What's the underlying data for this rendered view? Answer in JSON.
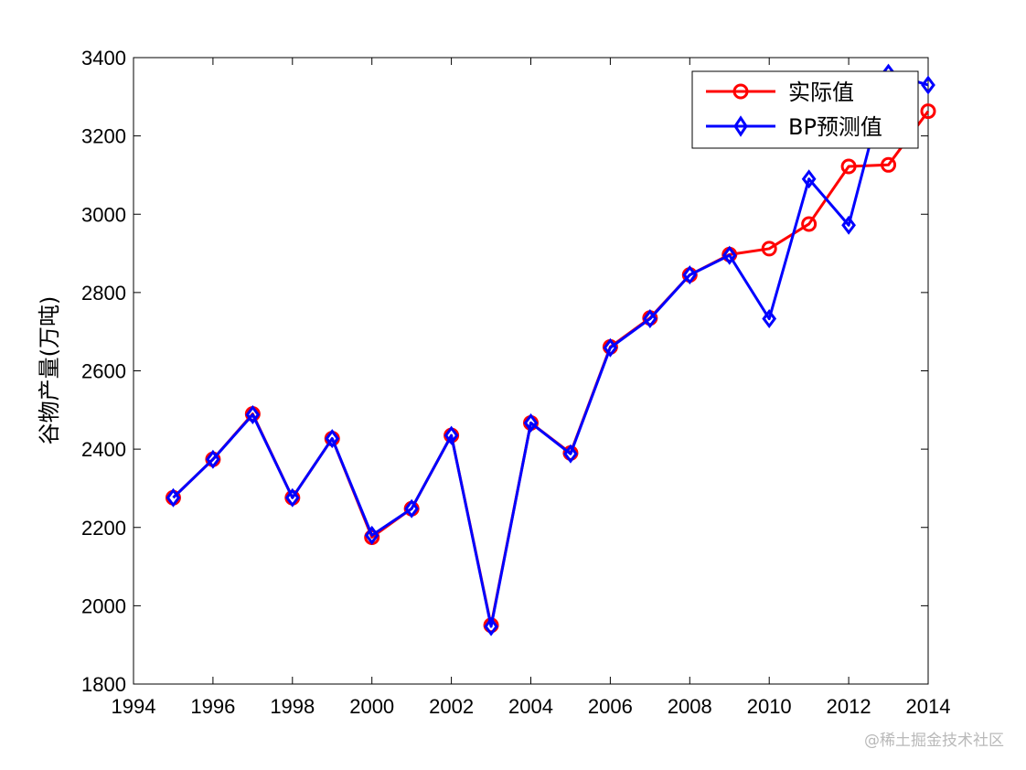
{
  "chart_data": {
    "type": "line",
    "title": "",
    "xlabel": "",
    "ylabel": "谷物产量(万吨)",
    "xlim": [
      1994,
      2014
    ],
    "ylim": [
      1800,
      3400
    ],
    "xticks": [
      "1994",
      "1996",
      "1998",
      "2000",
      "2002",
      "2004",
      "2006",
      "2008",
      "2010",
      "2012",
      "2014"
    ],
    "yticks": [
      "1800",
      "2000",
      "2200",
      "2400",
      "2600",
      "2800",
      "3000",
      "3200",
      "3400"
    ],
    "grid": false,
    "legend_position": "top-right",
    "x": [
      1995,
      1996,
      1997,
      1998,
      1999,
      2000,
      2001,
      2002,
      2003,
      2004,
      2005,
      2006,
      2007,
      2008,
      2009,
      2010,
      2011,
      2012,
      2013,
      2014
    ],
    "series": [
      {
        "name": "实际值",
        "color": "#ff0000",
        "marker": "circle",
        "values": [
          2276,
          2374,
          2490,
          2276,
          2427,
          2175,
          2248,
          2435,
          1950,
          2467,
          2390,
          2661,
          2735,
          2845,
          2897,
          2912,
          2975,
          3122,
          3126,
          3263
        ]
      },
      {
        "name": "BP预测值",
        "color": "#0000ff",
        "marker": "diamond",
        "values": [
          2276,
          2374,
          2488,
          2276,
          2427,
          2180,
          2248,
          2435,
          1947,
          2467,
          2388,
          2659,
          2733,
          2845,
          2895,
          2733,
          3090,
          2972,
          3360,
          3330
        ]
      }
    ]
  },
  "watermark": "@稀土掘金技术社区"
}
